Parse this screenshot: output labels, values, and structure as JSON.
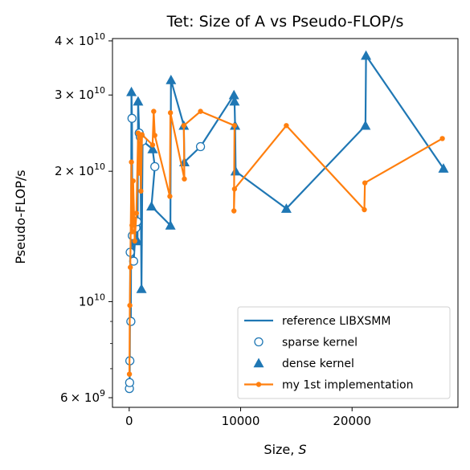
{
  "chart_data": {
    "type": "line",
    "title": "Tet: Size of A vs Pseudo-FLOP/s",
    "xlabel_main": "Size, ",
    "xlabel_var": "S",
    "ylabel": "Pseudo-FLOP/s",
    "x_scale": "linear",
    "y_scale": "log",
    "xlim": [
      -1500,
      29500
    ],
    "ylim": [
      5700000000,
      40500000000
    ],
    "x_ticks": [
      {
        "value": 0,
        "label": "0"
      },
      {
        "value": 10000,
        "label": "10000"
      },
      {
        "value": 20000,
        "label": "20000"
      }
    ],
    "y_major_ticks": [
      {
        "value": 6000000000,
        "mant": "6",
        "base": "× 10",
        "exp": "9"
      },
      {
        "value": 10000000000,
        "mant": "",
        "base": "10",
        "exp": "10"
      },
      {
        "value": 20000000000,
        "mant": "2",
        "base": "× 10",
        "exp": "10"
      },
      {
        "value": 30000000000,
        "mant": "3",
        "base": "× 10",
        "exp": "10"
      },
      {
        "value": 40000000000,
        "mant": "4",
        "base": "× 10",
        "exp": "10"
      }
    ],
    "y_minor_ticks": [
      7000000000,
      8000000000,
      9000000000
    ],
    "grid": false,
    "legend_position": "lower-right",
    "legend": [
      {
        "label": "reference LIBXSMM",
        "kind": "line",
        "color": "#1f77b4"
      },
      {
        "label": "sparse kernel",
        "kind": "open-circle",
        "color": "#1f77b4"
      },
      {
        "label": "dense kernel",
        "kind": "triangle",
        "color": "#1f77b4"
      },
      {
        "label": "my 1st implementation",
        "kind": "line-dot",
        "color": "#ff7f0e"
      }
    ],
    "series": [
      {
        "name": "reference LIBXSMM",
        "color": "#1f77b4",
        "points": [
          {
            "x": 20,
            "y": 6300000000,
            "m": "s"
          },
          {
            "x": 40,
            "y": 6500000000,
            "m": "s"
          },
          {
            "x": 60,
            "y": 7300000000,
            "m": "s"
          },
          {
            "x": 90,
            "y": 13000000000,
            "m": "s"
          },
          {
            "x": 150,
            "y": 9000000000,
            "m": "s"
          },
          {
            "x": 200,
            "y": 30500000000,
            "m": "d"
          },
          {
            "x": 250,
            "y": 26500000000,
            "m": "s"
          },
          {
            "x": 280,
            "y": 14200000000,
            "m": "s"
          },
          {
            "x": 400,
            "y": 12400000000,
            "m": "s"
          },
          {
            "x": 600,
            "y": 14800000000,
            "m": "s"
          },
          {
            "x": 700,
            "y": 15300000000,
            "m": "s"
          },
          {
            "x": 750,
            "y": 13800000000,
            "m": "d"
          },
          {
            "x": 800,
            "y": 29000000000,
            "m": "d"
          },
          {
            "x": 900,
            "y": 24500000000,
            "m": "s"
          },
          {
            "x": 1000,
            "y": 24000000000,
            "m": "s"
          },
          {
            "x": 1100,
            "y": 10700000000,
            "m": "d"
          },
          {
            "x": 1200,
            "y": 23500000000,
            "m": "s"
          },
          {
            "x": 2100,
            "y": 22500000000,
            "m": "d"
          },
          {
            "x": 2300,
            "y": 20500000000,
            "m": "s"
          },
          {
            "x": 2000,
            "y": 16600000000,
            "m": "d"
          },
          {
            "x": 3700,
            "y": 15000000000,
            "m": "d"
          },
          {
            "x": 3750,
            "y": 32500000000,
            "m": "d"
          },
          {
            "x": 4900,
            "y": 25500000000,
            "m": "d"
          },
          {
            "x": 4950,
            "y": 21000000000,
            "m": "d"
          },
          {
            "x": 6400,
            "y": 22800000000,
            "m": "s"
          },
          {
            "x": 9400,
            "y": 30000000000,
            "m": "d"
          },
          {
            "x": 9450,
            "y": 29000000000,
            "m": "d"
          },
          {
            "x": 9500,
            "y": 25500000000,
            "m": "d"
          },
          {
            "x": 9550,
            "y": 20000000000,
            "m": "d"
          },
          {
            "x": 14100,
            "y": 16400000000,
            "m": "d"
          },
          {
            "x": 21200,
            "y": 25500000000,
            "m": "d"
          },
          {
            "x": 21250,
            "y": 37000000000,
            "m": "d"
          },
          {
            "x": 28200,
            "y": 20300000000,
            "m": "d"
          }
        ]
      },
      {
        "name": "my 1st implementation",
        "color": "#ff7f0e",
        "points": [
          {
            "x": 20,
            "y": 6800000000
          },
          {
            "x": 60,
            "y": 9800000000
          },
          {
            "x": 100,
            "y": 12000000000
          },
          {
            "x": 200,
            "y": 21000000000
          },
          {
            "x": 250,
            "y": 15000000000
          },
          {
            "x": 280,
            "y": 14500000000
          },
          {
            "x": 350,
            "y": 19000000000
          },
          {
            "x": 450,
            "y": 15500000000
          },
          {
            "x": 500,
            "y": 13800000000
          },
          {
            "x": 650,
            "y": 16000000000
          },
          {
            "x": 800,
            "y": 24500000000
          },
          {
            "x": 900,
            "y": 19800000000
          },
          {
            "x": 1000,
            "y": 24000000000
          },
          {
            "x": 1050,
            "y": 18000000000
          },
          {
            "x": 1150,
            "y": 24300000000
          },
          {
            "x": 2100,
            "y": 23000000000
          },
          {
            "x": 2200,
            "y": 27500000000
          },
          {
            "x": 2300,
            "y": 24200000000
          },
          {
            "x": 3650,
            "y": 17500000000
          },
          {
            "x": 3700,
            "y": 27300000000
          },
          {
            "x": 4950,
            "y": 19200000000
          },
          {
            "x": 4900,
            "y": 25500000000
          },
          {
            "x": 6400,
            "y": 27500000000
          },
          {
            "x": 9450,
            "y": 25500000000
          },
          {
            "x": 9400,
            "y": 16200000000
          },
          {
            "x": 9450,
            "y": 18200000000
          },
          {
            "x": 14100,
            "y": 25500000000
          },
          {
            "x": 21100,
            "y": 16300000000
          },
          {
            "x": 21150,
            "y": 18800000000
          },
          {
            "x": 28100,
            "y": 23800000000
          }
        ]
      }
    ]
  }
}
